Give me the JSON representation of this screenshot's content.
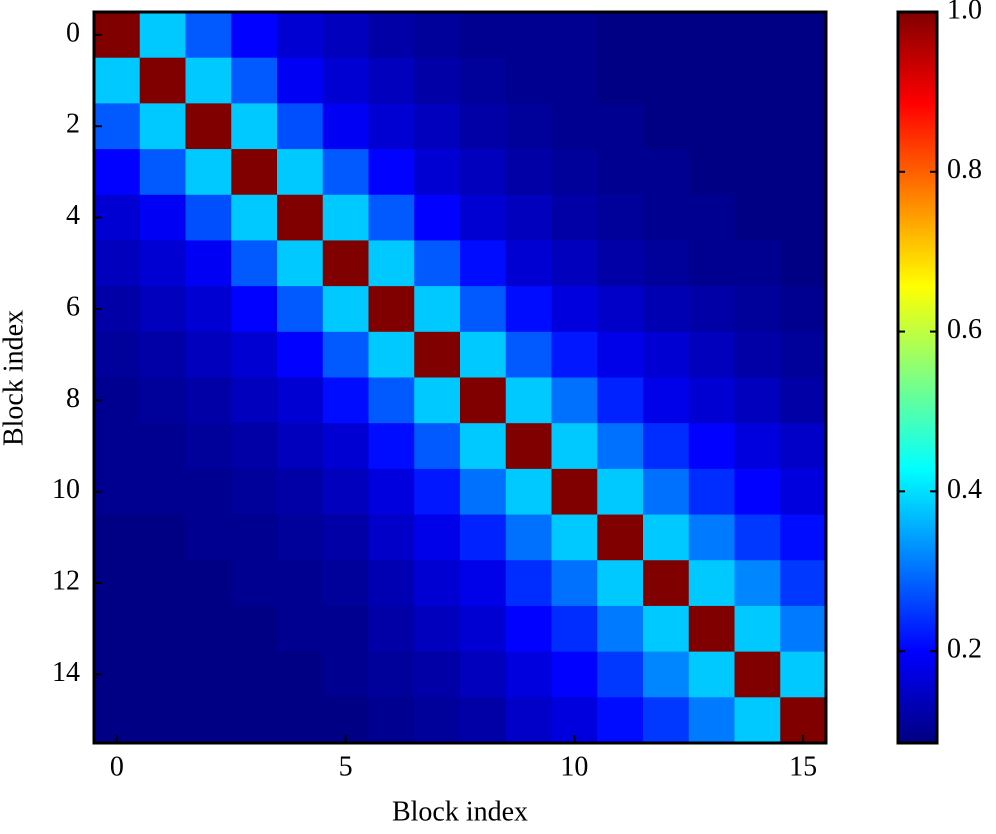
{
  "chart_data": {
    "type": "heatmap",
    "xlabel": "Block index",
    "ylabel": "Block index",
    "xlim": [
      -0.5,
      15.5
    ],
    "ylim": [
      15.5,
      -0.5
    ],
    "xticks": [
      0,
      5,
      10,
      15
    ],
    "yticks": [
      0,
      2,
      4,
      6,
      8,
      10,
      12,
      14
    ],
    "colormap": "jet",
    "clim": [
      0.085,
      1.0
    ],
    "colorbar_ticks": [
      0.2,
      0.4,
      0.6,
      0.8,
      {
        "value": 1,
        "label": "1.0"
      }
    ],
    "z": [
      [
        1.0,
        0.38,
        0.28,
        0.2,
        0.16,
        0.14,
        0.12,
        0.11,
        0.1,
        0.1,
        0.1,
        0.09,
        0.09,
        0.09,
        0.09,
        0.09
      ],
      [
        0.38,
        1.0,
        0.38,
        0.28,
        0.19,
        0.16,
        0.14,
        0.12,
        0.11,
        0.1,
        0.1,
        0.09,
        0.09,
        0.09,
        0.09,
        0.09
      ],
      [
        0.28,
        0.38,
        1.0,
        0.38,
        0.27,
        0.19,
        0.16,
        0.14,
        0.12,
        0.11,
        0.1,
        0.1,
        0.09,
        0.09,
        0.09,
        0.09
      ],
      [
        0.2,
        0.28,
        0.38,
        1.0,
        0.38,
        0.28,
        0.2,
        0.16,
        0.14,
        0.12,
        0.11,
        0.1,
        0.1,
        0.09,
        0.09,
        0.09
      ],
      [
        0.16,
        0.19,
        0.27,
        0.38,
        1.0,
        0.38,
        0.28,
        0.2,
        0.16,
        0.14,
        0.12,
        0.11,
        0.1,
        0.1,
        0.09,
        0.09
      ],
      [
        0.14,
        0.16,
        0.19,
        0.28,
        0.38,
        1.0,
        0.38,
        0.28,
        0.21,
        0.16,
        0.14,
        0.12,
        0.11,
        0.1,
        0.1,
        0.09
      ],
      [
        0.12,
        0.14,
        0.16,
        0.2,
        0.28,
        0.38,
        1.0,
        0.38,
        0.28,
        0.21,
        0.17,
        0.15,
        0.13,
        0.12,
        0.11,
        0.1
      ],
      [
        0.11,
        0.12,
        0.14,
        0.16,
        0.2,
        0.28,
        0.38,
        1.0,
        0.38,
        0.28,
        0.22,
        0.18,
        0.16,
        0.14,
        0.12,
        0.11
      ],
      [
        0.1,
        0.11,
        0.12,
        0.14,
        0.16,
        0.21,
        0.28,
        0.38,
        1.0,
        0.38,
        0.3,
        0.23,
        0.18,
        0.16,
        0.14,
        0.12
      ],
      [
        0.1,
        0.1,
        0.11,
        0.12,
        0.14,
        0.16,
        0.21,
        0.28,
        0.38,
        1.0,
        0.38,
        0.3,
        0.24,
        0.2,
        0.17,
        0.15
      ],
      [
        0.1,
        0.1,
        0.1,
        0.11,
        0.12,
        0.14,
        0.17,
        0.22,
        0.3,
        0.38,
        1.0,
        0.38,
        0.3,
        0.24,
        0.2,
        0.17
      ],
      [
        0.09,
        0.09,
        0.1,
        0.1,
        0.11,
        0.12,
        0.15,
        0.18,
        0.23,
        0.3,
        0.38,
        1.0,
        0.38,
        0.31,
        0.25,
        0.21
      ],
      [
        0.09,
        0.09,
        0.09,
        0.1,
        0.1,
        0.11,
        0.13,
        0.16,
        0.18,
        0.24,
        0.3,
        0.38,
        1.0,
        0.38,
        0.32,
        0.25
      ],
      [
        0.09,
        0.09,
        0.09,
        0.09,
        0.1,
        0.1,
        0.12,
        0.14,
        0.16,
        0.2,
        0.24,
        0.31,
        0.38,
        1.0,
        0.38,
        0.31
      ],
      [
        0.09,
        0.09,
        0.09,
        0.09,
        0.09,
        0.1,
        0.11,
        0.12,
        0.14,
        0.17,
        0.2,
        0.25,
        0.32,
        0.38,
        1.0,
        0.38
      ],
      [
        0.09,
        0.09,
        0.09,
        0.09,
        0.09,
        0.09,
        0.1,
        0.11,
        0.12,
        0.15,
        0.17,
        0.21,
        0.25,
        0.31,
        0.38,
        1.0
      ]
    ]
  }
}
